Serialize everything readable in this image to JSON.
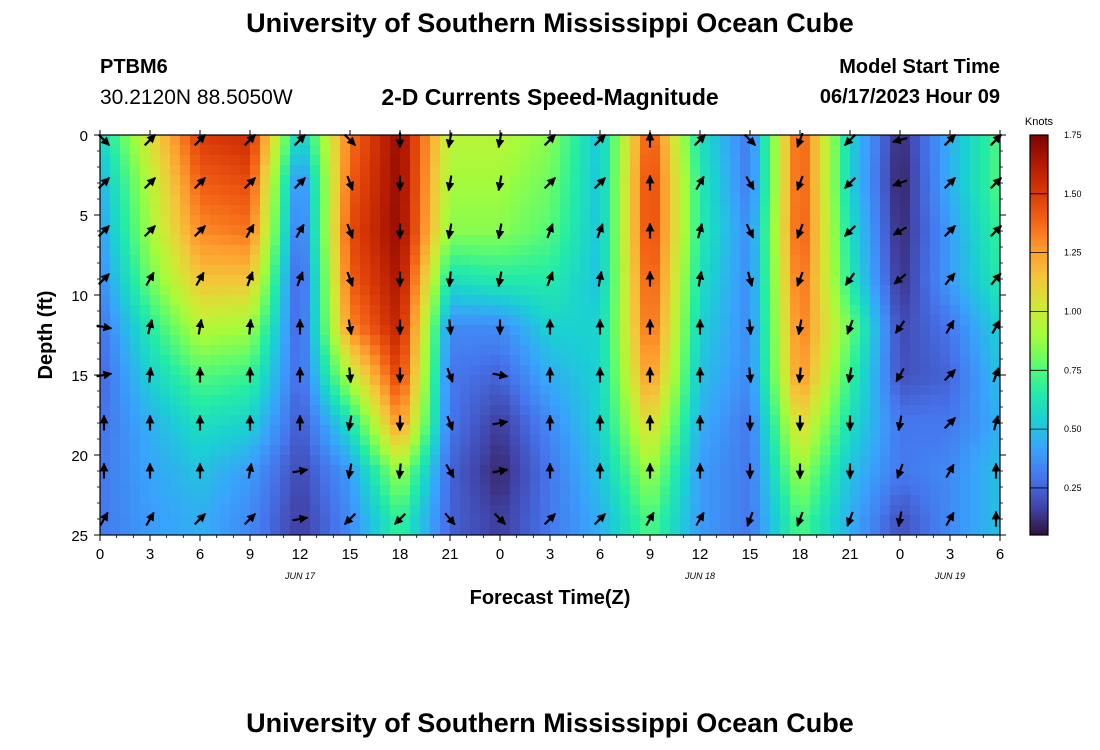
{
  "header": {
    "title": "University of Southern Mississippi Ocean Cube",
    "station_id": "PTBM6",
    "coordinates": "30.2120N  88.5050W",
    "chart_title": "2-D Currents Speed-Magnitude",
    "model_start_label": "Model Start Time",
    "model_start_value": "06/17/2023 Hour 09"
  },
  "footer": {
    "title": "University of Southern Mississippi Ocean Cube"
  },
  "colors": {
    "palette": [
      "#30123b",
      "#4145ab",
      "#4675ed",
      "#39a2fc",
      "#1bcfd4",
      "#24eca6",
      "#61fc6c",
      "#a4fc3b",
      "#d1e834",
      "#f3c63a",
      "#fe9b2d",
      "#f36315",
      "#d93806",
      "#b11901",
      "#7a0403"
    ]
  },
  "chart_data": {
    "type": "heatmap",
    "title": "2-D Currents Speed-Magnitude",
    "xlabel": "Forecast Time(Z)",
    "ylabel": "Depth (ft)",
    "x_hours": [
      0,
      3,
      6,
      9,
      12,
      15,
      18,
      21,
      24,
      27,
      30,
      33,
      36,
      39,
      42,
      45,
      48,
      51,
      54
    ],
    "x_tick_labels": [
      "0",
      "3",
      "6",
      "9",
      "12",
      "15",
      "18",
      "21",
      "0",
      "3",
      "6",
      "9",
      "12",
      "15",
      "18",
      "21",
      "0",
      "3",
      "6"
    ],
    "date_labels": [
      {
        "hour": 12,
        "label": "JUN 17"
      },
      {
        "hour": 36,
        "label": "JUN 18"
      },
      {
        "hour": 51,
        "label": "JUN 19"
      }
    ],
    "xlim": [
      0,
      54
    ],
    "depths_ft": [
      0,
      3,
      6,
      9,
      12,
      15,
      18,
      21,
      24
    ],
    "y_tick_labels": [
      "0",
      "5",
      "10",
      "15",
      "20",
      "25"
    ],
    "y_ticks": [
      0,
      5,
      10,
      15,
      20,
      25
    ],
    "ylim": [
      0,
      25
    ],
    "speed_knots": [
      [
        0.55,
        1.05,
        1.5,
        1.55,
        0.5,
        1.35,
        1.7,
        0.95,
        0.95,
        0.85,
        0.5,
        1.45,
        0.6,
        0.3,
        1.45,
        0.55,
        0.1,
        0.45,
        0.75
      ],
      [
        0.45,
        0.95,
        1.4,
        1.45,
        0.3,
        1.4,
        1.7,
        0.9,
        0.9,
        0.8,
        0.5,
        1.5,
        0.65,
        0.3,
        1.45,
        0.55,
        0.08,
        0.45,
        0.75
      ],
      [
        0.4,
        0.9,
        1.3,
        1.35,
        0.25,
        1.45,
        1.7,
        0.85,
        0.85,
        0.75,
        0.5,
        1.5,
        0.65,
        0.35,
        1.45,
        0.6,
        0.1,
        0.4,
        0.7
      ],
      [
        0.35,
        0.8,
        1.15,
        1.15,
        0.2,
        1.4,
        1.65,
        0.6,
        0.65,
        0.65,
        0.5,
        1.45,
        0.6,
        0.35,
        1.4,
        0.65,
        0.12,
        0.4,
        0.65
      ],
      [
        0.28,
        0.65,
        0.95,
        0.9,
        0.22,
        1.3,
        1.6,
        0.35,
        0.35,
        0.55,
        0.55,
        1.4,
        0.55,
        0.35,
        1.35,
        0.8,
        0.18,
        0.3,
        0.55
      ],
      [
        0.25,
        0.55,
        0.75,
        0.7,
        0.25,
        0.95,
        1.5,
        0.3,
        0.25,
        0.45,
        0.55,
        1.3,
        0.5,
        0.35,
        1.3,
        0.7,
        0.2,
        0.25,
        0.5
      ],
      [
        0.28,
        0.45,
        0.6,
        0.55,
        0.22,
        0.6,
        1.3,
        0.3,
        0.15,
        0.35,
        0.55,
        1.1,
        0.45,
        0.3,
        1.1,
        0.6,
        0.3,
        0.3,
        0.45
      ],
      [
        0.3,
        0.42,
        0.5,
        0.4,
        0.18,
        0.4,
        0.9,
        0.25,
        0.1,
        0.3,
        0.5,
        0.9,
        0.4,
        0.3,
        0.9,
        0.5,
        0.3,
        0.35,
        0.5
      ],
      [
        0.3,
        0.4,
        0.45,
        0.35,
        0.15,
        0.35,
        0.7,
        0.25,
        0.15,
        0.3,
        0.45,
        0.75,
        0.4,
        0.3,
        0.75,
        0.45,
        0.2,
        0.35,
        0.5
      ]
    ],
    "directions_deg": [
      [
        135,
        45,
        45,
        45,
        45,
        135,
        180,
        190,
        190,
        45,
        45,
        0,
        45,
        135,
        200,
        225,
        255,
        45,
        45
      ],
      [
        45,
        45,
        45,
        45,
        45,
        160,
        180,
        190,
        190,
        45,
        45,
        0,
        30,
        150,
        200,
        225,
        250,
        45,
        45
      ],
      [
        45,
        45,
        45,
        30,
        30,
        160,
        180,
        190,
        190,
        20,
        20,
        0,
        15,
        155,
        200,
        225,
        240,
        45,
        45
      ],
      [
        45,
        30,
        30,
        20,
        20,
        160,
        180,
        185,
        190,
        20,
        10,
        0,
        10,
        165,
        200,
        215,
        230,
        40,
        40
      ],
      [
        100,
        15,
        10,
        5,
        0,
        170,
        180,
        175,
        180,
        0,
        0,
        0,
        0,
        175,
        190,
        200,
        215,
        30,
        30
      ],
      [
        80,
        5,
        0,
        0,
        0,
        175,
        180,
        160,
        100,
        0,
        0,
        0,
        0,
        175,
        185,
        190,
        210,
        45,
        20
      ],
      [
        0,
        0,
        0,
        0,
        0,
        190,
        180,
        160,
        80,
        0,
        0,
        0,
        0,
        180,
        180,
        180,
        190,
        45,
        15
      ],
      [
        0,
        0,
        0,
        10,
        80,
        190,
        185,
        150,
        80,
        0,
        0,
        0,
        0,
        180,
        180,
        180,
        200,
        30,
        0
      ],
      [
        30,
        30,
        45,
        45,
        80,
        225,
        225,
        140,
        135,
        45,
        45,
        30,
        30,
        200,
        200,
        200,
        190,
        30,
        0
      ]
    ],
    "colorbar": {
      "label": "Knots",
      "min": 0.05,
      "max": 1.75,
      "ticks": [
        0.25,
        0.5,
        0.75,
        1.0,
        1.25,
        1.5,
        1.75
      ],
      "tick_labels": [
        "0.25",
        "0.50",
        "0.75",
        "1.00",
        "1.25",
        "1.50",
        "1.75"
      ]
    }
  }
}
